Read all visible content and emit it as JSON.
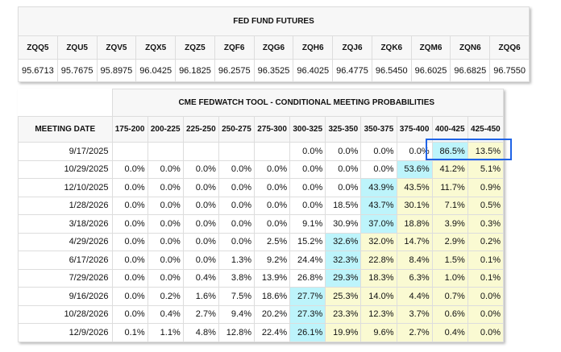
{
  "futures": {
    "title": "FED FUND FUTURES",
    "contracts": [
      "ZQQ5",
      "ZQU5",
      "ZQV5",
      "ZQX5",
      "ZQZ5",
      "ZQF6",
      "ZQG6",
      "ZQH6",
      "ZQJ6",
      "ZQK6",
      "ZQM6",
      "ZQN6",
      "ZQQ6"
    ],
    "prices": [
      "95.6713",
      "95.7675",
      "95.8975",
      "96.0425",
      "96.1825",
      "96.2575",
      "96.3525",
      "96.4025",
      "96.4775",
      "96.5450",
      "96.6025",
      "96.6825",
      "96.7550"
    ]
  },
  "probabilities": {
    "title": "CME FEDWATCH TOOL - CONDITIONAL MEETING PROBABILITIES",
    "date_header": "MEETING DATE",
    "ranges": [
      "175-200",
      "200-225",
      "225-250",
      "250-275",
      "275-300",
      "300-325",
      "325-350",
      "350-375",
      "375-400",
      "400-425",
      "425-450"
    ],
    "colors": {
      "max": "#bdf4fb",
      "above": "#fafad2",
      "highlight_box": "#1f63e6"
    },
    "rows": [
      {
        "date": "9/17/2025",
        "values": [
          "",
          "",
          "",
          "",
          "",
          "0.0%",
          "0.0%",
          "0.0%",
          "0.0%",
          "86.5%",
          "13.5%"
        ],
        "max_index": 9
      },
      {
        "date": "10/29/2025",
        "values": [
          "0.0%",
          "0.0%",
          "0.0%",
          "0.0%",
          "0.0%",
          "0.0%",
          "0.0%",
          "0.0%",
          "53.6%",
          "41.2%",
          "5.1%"
        ],
        "max_index": 8
      },
      {
        "date": "12/10/2025",
        "values": [
          "0.0%",
          "0.0%",
          "0.0%",
          "0.0%",
          "0.0%",
          "0.0%",
          "0.0%",
          "43.9%",
          "43.5%",
          "11.7%",
          "0.9%"
        ],
        "max_index": 7
      },
      {
        "date": "1/28/2026",
        "values": [
          "0.0%",
          "0.0%",
          "0.0%",
          "0.0%",
          "0.0%",
          "0.0%",
          "18.5%",
          "43.7%",
          "30.1%",
          "7.1%",
          "0.5%"
        ],
        "max_index": 7
      },
      {
        "date": "3/18/2026",
        "values": [
          "0.0%",
          "0.0%",
          "0.0%",
          "0.0%",
          "0.0%",
          "9.1%",
          "30.9%",
          "37.0%",
          "18.8%",
          "3.9%",
          "0.3%"
        ],
        "max_index": 7
      },
      {
        "date": "4/29/2026",
        "values": [
          "0.0%",
          "0.0%",
          "0.0%",
          "0.0%",
          "2.5%",
          "15.2%",
          "32.6%",
          "32.0%",
          "14.7%",
          "2.9%",
          "0.2%"
        ],
        "max_index": 6
      },
      {
        "date": "6/17/2026",
        "values": [
          "0.0%",
          "0.0%",
          "0.0%",
          "1.3%",
          "9.2%",
          "24.4%",
          "32.3%",
          "22.8%",
          "8.4%",
          "1.5%",
          "0.1%"
        ],
        "max_index": 6
      },
      {
        "date": "7/29/2026",
        "values": [
          "0.0%",
          "0.0%",
          "0.4%",
          "3.8%",
          "13.9%",
          "26.8%",
          "29.3%",
          "18.3%",
          "6.3%",
          "1.0%",
          "0.1%"
        ],
        "max_index": 6
      },
      {
        "date": "9/16/2026",
        "values": [
          "0.0%",
          "0.2%",
          "1.6%",
          "7.5%",
          "18.6%",
          "27.7%",
          "25.3%",
          "14.0%",
          "4.4%",
          "0.7%",
          "0.0%"
        ],
        "max_index": 5
      },
      {
        "date": "10/28/2026",
        "values": [
          "0.0%",
          "0.4%",
          "2.7%",
          "9.4%",
          "20.2%",
          "27.3%",
          "23.3%",
          "12.3%",
          "3.7%",
          "0.6%",
          "0.0%"
        ],
        "max_index": 5
      },
      {
        "date": "12/9/2026",
        "values": [
          "0.1%",
          "1.1%",
          "4.8%",
          "12.8%",
          "22.4%",
          "26.1%",
          "19.9%",
          "9.6%",
          "2.7%",
          "0.4%",
          "0.0%"
        ],
        "max_index": 5
      }
    ]
  }
}
